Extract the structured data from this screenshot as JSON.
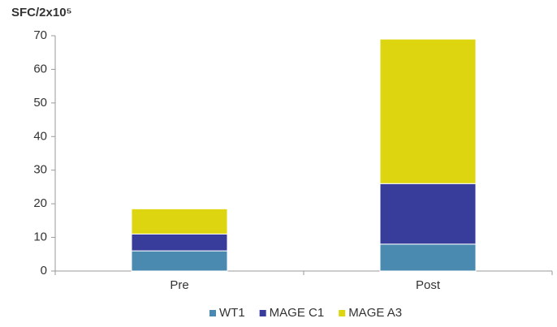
{
  "chart_data": {
    "type": "stacked_bar",
    "y_label": "SFC/2x10⁵",
    "categories": [
      "Pre",
      "Post"
    ],
    "series": [
      {
        "name": "WT1",
        "color": "#4a8ab0",
        "values": [
          6,
          8
        ]
      },
      {
        "name": "MAGE C1",
        "color": "#383d9c",
        "values": [
          5,
          18
        ]
      },
      {
        "name": "MAGE A3",
        "color": "#ddd510",
        "values": [
          7.5,
          43
        ]
      }
    ],
    "ylim": [
      0,
      70
    ],
    "yticks": [
      0,
      10,
      20,
      30,
      40,
      50,
      60,
      70
    ],
    "grid": false,
    "legend": "bottom"
  }
}
